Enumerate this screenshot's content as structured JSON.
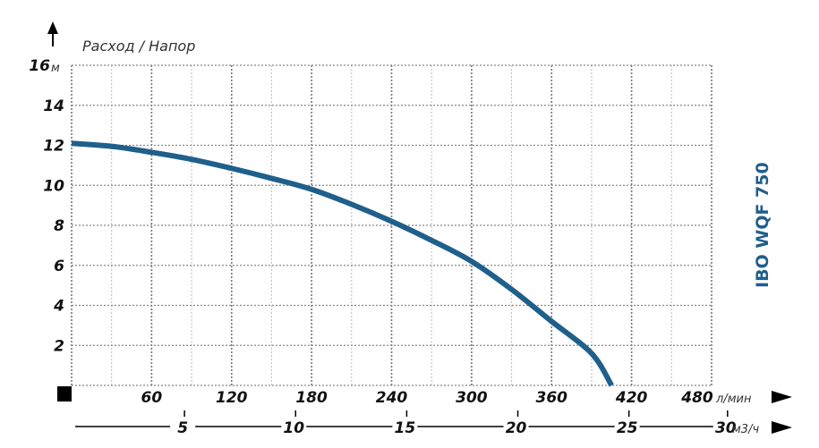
{
  "chart_data": {
    "type": "line",
    "title": "Расход / Напор",
    "model_label": "IBO WQF 750",
    "y_unit": "м",
    "x_unit": "л/мин",
    "x2_unit": "м3/ч",
    "xlim": [
      0,
      480
    ],
    "ylim": [
      0,
      16
    ],
    "x_ticks": [
      60,
      120,
      180,
      240,
      300,
      360,
      420,
      480
    ],
    "y_ticks": [
      2,
      4,
      6,
      8,
      10,
      12,
      14,
      16
    ],
    "x2_ticks": [
      5,
      10,
      15,
      20,
      25,
      30
    ],
    "grid": true,
    "line_color": "#1f5f8b",
    "series": [
      {
        "x": [
          0,
          30,
          60,
          90,
          120,
          150,
          180,
          210,
          240,
          270,
          300,
          330,
          360,
          390,
          405
        ],
        "y": [
          12.1,
          11.95,
          11.65,
          11.3,
          10.85,
          10.35,
          9.8,
          9.05,
          8.2,
          7.25,
          6.2,
          4.8,
          3.2,
          1.6,
          0
        ]
      }
    ]
  }
}
